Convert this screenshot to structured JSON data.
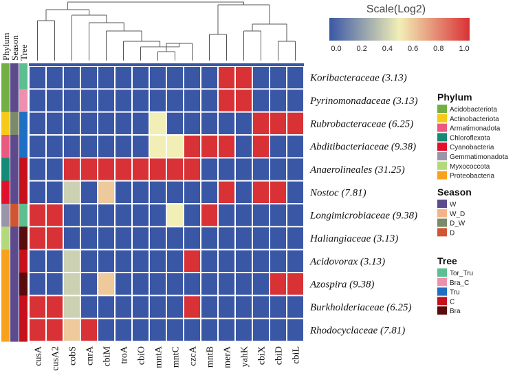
{
  "chart_data": {
    "type": "heatmap",
    "scale_title": "Scale(Log2)",
    "scale_ticks": [
      "0.0",
      "0.2",
      "0.4",
      "0.6",
      "0.8",
      "1.0"
    ],
    "colors": {
      "low": "#3a57a6",
      "mid": "#f2efb6",
      "high": "#d93236",
      "grid": "#ffffff"
    },
    "columns": [
      "cusA",
      "cusA2",
      "cobS",
      "cnrA",
      "cbiM",
      "troA",
      "cbiO",
      "mntA",
      "mntC",
      "czcA",
      "mntB",
      "merA",
      "yahK",
      "cbiX",
      "cbiD",
      "cbiL"
    ],
    "rows": [
      "Koribacteraceae (3.13)",
      "Pyrinomonadaceae (3.13)",
      "Rubrobacteraceae (6.25)",
      "Abditibacteriaceae (9.38)",
      "Anaerolineales (31.25)",
      "Nostoc (7.81)",
      "Longimicrobiaceae (9.38)",
      "Haliangiaceae (3.13)",
      "Acidovorax (3.13)",
      "Azospira (9.38)",
      "Burkholderiaceae (6.25)",
      "Rhodocyclaceae (7.81)"
    ],
    "values": [
      [
        0,
        0,
        0,
        0,
        0,
        0,
        0,
        0,
        0,
        0,
        0,
        1,
        1,
        0,
        0,
        0
      ],
      [
        0,
        0,
        0,
        0,
        0,
        0,
        0,
        0,
        0,
        0,
        0,
        1,
        1,
        0,
        0,
        0
      ],
      [
        0,
        0,
        0,
        0,
        0,
        0,
        0,
        0.5,
        0,
        0,
        0,
        0,
        0,
        1,
        1,
        1
      ],
      [
        0,
        0,
        0,
        0,
        0,
        0,
        0,
        0.5,
        0.5,
        1,
        1,
        1,
        0,
        1,
        0,
        0
      ],
      [
        0,
        0,
        1,
        1,
        1,
        1,
        1,
        1,
        1,
        1,
        0,
        0,
        0,
        0,
        0,
        0
      ],
      [
        0,
        0,
        0.4,
        0,
        0.6,
        0,
        0,
        0,
        0,
        0,
        0,
        1,
        0,
        1,
        1,
        0
      ],
      [
        1,
        1,
        0,
        0,
        0,
        0,
        0,
        0,
        0.5,
        0,
        1,
        0,
        0,
        0,
        0,
        0
      ],
      [
        1,
        1,
        0,
        0,
        0,
        0,
        0,
        0,
        0,
        0,
        0,
        0,
        0,
        0,
        0,
        0
      ],
      [
        0,
        0,
        0.4,
        0,
        0,
        0,
        0,
        0,
        0,
        1,
        0,
        0,
        0,
        0,
        0,
        0
      ],
      [
        0,
        0,
        0.4,
        0,
        0.6,
        0,
        0,
        0,
        0,
        0,
        0,
        0,
        0,
        0,
        1,
        1
      ],
      [
        1,
        1,
        0.4,
        0,
        0,
        0,
        0,
        0,
        0,
        1,
        0,
        0,
        0,
        0,
        0,
        0
      ],
      [
        1,
        1,
        0.6,
        1,
        0,
        0,
        0,
        0,
        0,
        0,
        0,
        0,
        0,
        0,
        0,
        0
      ]
    ],
    "annotation_headers": [
      "Phylum",
      "Season",
      "Tree"
    ],
    "annotations": {
      "Phylum": [
        "Acidobacteriota",
        "Acidobacteriota",
        "Actinobacteriota",
        "Armatimonadota",
        "Chloroflexota",
        "Cyanobacteria",
        "Gemmatimonadota",
        "Myxococcota",
        "Proteobacteria",
        "Proteobacteria",
        "Proteobacteria",
        "Proteobacteria"
      ],
      "Season": [
        "W",
        "W",
        "D_W",
        "W",
        "W",
        "W",
        "D",
        "W",
        "W",
        "W",
        "W",
        "W"
      ],
      "Tree": [
        "Tor_Tru",
        "Bra_C",
        "Tru",
        "Tru",
        "C",
        "C",
        "Tor_Tru",
        "Bra",
        "C",
        "Bra",
        "C",
        "C"
      ]
    },
    "legends": [
      {
        "title": "Phylum",
        "items": [
          {
            "label": "Acidobacteriota",
            "color": "#72b043"
          },
          {
            "label": "Actinobacteriota",
            "color": "#f7c918"
          },
          {
            "label": "Armatimonadota",
            "color": "#ea5a80"
          },
          {
            "label": "Chloroflexota",
            "color": "#148b76"
          },
          {
            "label": "Cyanobacteria",
            "color": "#e2102b"
          },
          {
            "label": "Gemmatimonadota",
            "color": "#9b95ac"
          },
          {
            "label": "Myxococcota",
            "color": "#b4d97c"
          },
          {
            "label": "Proteobacteria",
            "color": "#f8a21b"
          }
        ]
      },
      {
        "title": "Season",
        "items": [
          {
            "label": "W",
            "color": "#5c4a8c"
          },
          {
            "label": "W_D",
            "color": "#f4b487"
          },
          {
            "label": "D_W",
            "color": "#7a8a6a"
          },
          {
            "label": "D",
            "color": "#cf5632"
          }
        ]
      },
      {
        "title": "Tree",
        "items": [
          {
            "label": "Tor_Tru",
            "color": "#5bbf91"
          },
          {
            "label": "Bra_C",
            "color": "#ef8fae"
          },
          {
            "label": "Tru",
            "color": "#1f6fc4"
          },
          {
            "label": "C",
            "color": "#c6111d"
          },
          {
            "label": "Bra",
            "color": "#5a0b0b"
          }
        ]
      }
    ],
    "dendrogram": "hierarchical clustering of columns"
  }
}
